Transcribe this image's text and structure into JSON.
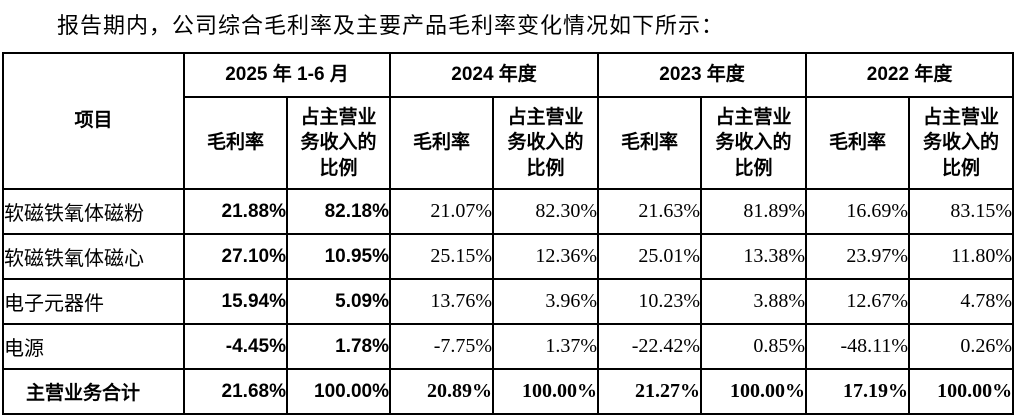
{
  "intro_text": "报告期内，公司综合毛利率及主要产品毛利率变化情况如下所示：",
  "colors": {
    "text": "#000000",
    "border": "#000000",
    "background": "#ffffff"
  },
  "table": {
    "item_column_header": "项目",
    "periods": [
      {
        "label": "2025 年 1-6 月"
      },
      {
        "label": "2024 年度"
      },
      {
        "label": "2023 年度"
      },
      {
        "label": "2022 年度"
      }
    ],
    "sub_header_margin": "毛利率",
    "sub_header_share": "占主营业务收入的比例",
    "rows": [
      {
        "label": "软磁铁氧体磁粉",
        "total": false,
        "values": [
          "21.88%",
          "82.18%",
          "21.07%",
          "82.30%",
          "21.63%",
          "81.89%",
          "16.69%",
          "83.15%"
        ]
      },
      {
        "label": "软磁铁氧体磁心",
        "total": false,
        "values": [
          "27.10%",
          "10.95%",
          "25.15%",
          "12.36%",
          "25.01%",
          "13.38%",
          "23.97%",
          "11.80%"
        ]
      },
      {
        "label": "电子元器件",
        "total": false,
        "values": [
          "15.94%",
          "5.09%",
          "13.76%",
          "3.96%",
          "10.23%",
          "3.88%",
          "12.67%",
          "4.78%"
        ]
      },
      {
        "label": "电源",
        "total": false,
        "values": [
          "-4.45%",
          "1.78%",
          "-7.75%",
          "1.37%",
          "-22.42%",
          "0.85%",
          "-48.11%",
          "0.26%"
        ]
      },
      {
        "label": "主营业务合计",
        "total": true,
        "values": [
          "21.68%",
          "100.00%",
          "20.89%",
          "100.00%",
          "21.27%",
          "100.00%",
          "17.19%",
          "100.00%"
        ]
      }
    ]
  }
}
